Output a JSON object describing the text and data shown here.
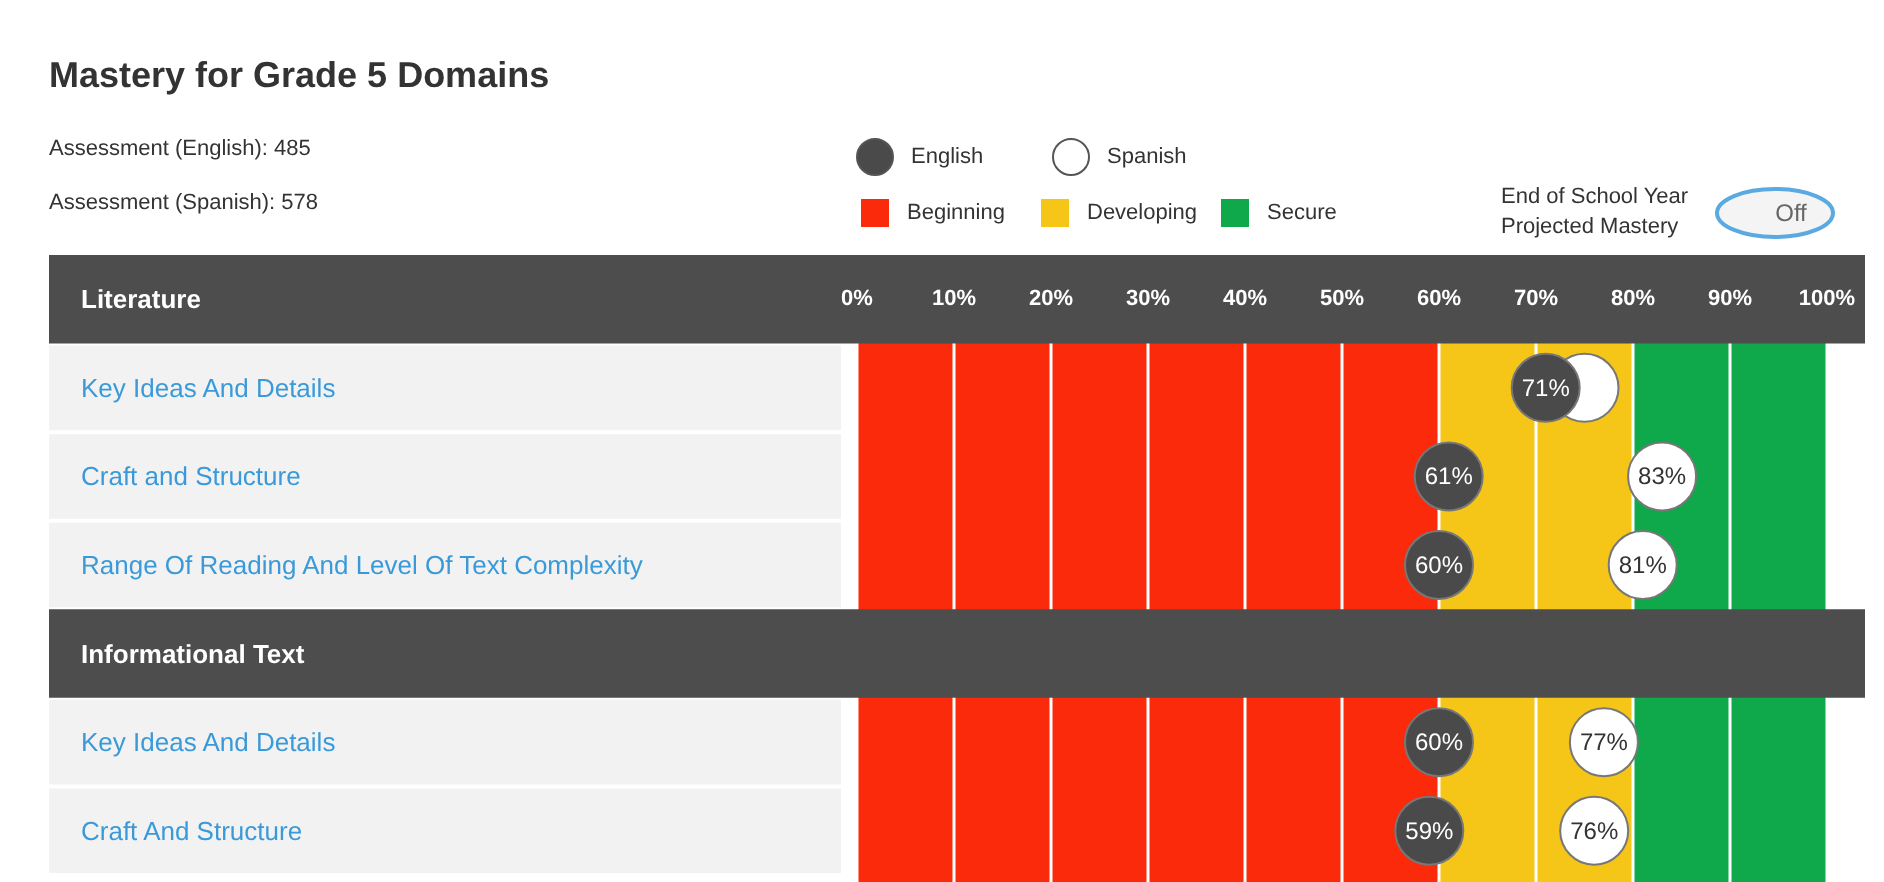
{
  "chart_data": {
    "type": "scatter",
    "title": "Mastery for Grade 5 Domains",
    "categories": [
      "Literature",
      "Key Ideas And Details",
      "Craft and Structure",
      "Range Of Reading And Level Of Text Complexity",
      "Informational Text",
      "Key Ideas And Details",
      "Craft And Structure"
    ],
    "orientation": "horizontal",
    "series": [
      {
        "name": "Spanish",
        "color": "#ffffff",
        "values": [
          null,
          75,
          83,
          81,
          null,
          77,
          76
        ],
        "value_labels": [
          null,
          null,
          "83%",
          "81%",
          null,
          "77%",
          "76%"
        ]
      },
      {
        "name": "English",
        "color": "#4a4a4a",
        "values": [
          null,
          71,
          61,
          60,
          null,
          60,
          59
        ],
        "value_labels": [
          null,
          "71%",
          "61%",
          "60%",
          null,
          "60%",
          "59%"
        ]
      }
    ],
    "xlim": [
      0,
      100
    ],
    "xticks": [
      {
        "value": 0,
        "label": "0%"
      },
      {
        "value": 10,
        "label": "10%"
      },
      {
        "value": 20,
        "label": "20%"
      },
      {
        "value": 30,
        "label": "30%"
      },
      {
        "value": 40,
        "label": "40%"
      },
      {
        "value": 50,
        "label": "50%"
      },
      {
        "value": 60,
        "label": "60%"
      },
      {
        "value": 70,
        "label": "70%"
      },
      {
        "value": 80,
        "label": "80%"
      },
      {
        "value": 90,
        "label": "90%"
      },
      {
        "value": 100,
        "label": "100%"
      }
    ],
    "bands": [
      {
        "axis": "x",
        "from": 0,
        "to": 60,
        "label": "Beginning",
        "color": "#fa2a0a"
      },
      {
        "axis": "x",
        "from": 60,
        "to": 80,
        "label": "Developing",
        "color": "#f5c518"
      },
      {
        "axis": "x",
        "from": 80,
        "to": 100,
        "label": "Secure",
        "color": "#0fa84a"
      }
    ],
    "grid": "x",
    "marker": "circle",
    "legend": "top",
    "annotations": [
      "Assessment (English): 485",
      "Assessment (Spanish): 578",
      "End of School Year Projected Mastery",
      "Off"
    ]
  }
}
